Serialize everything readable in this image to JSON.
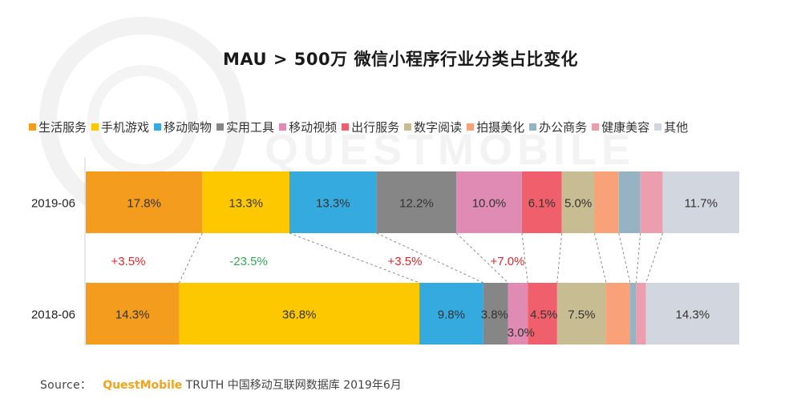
{
  "chart_data": {
    "type": "stacked-bar-horizontal-100",
    "title": "MAU > 500万 微信小程序行业分类占比变化",
    "legend_position": "top",
    "categories": [
      "2019-06",
      "2018-06"
    ],
    "series": [
      {
        "name": "生活服务",
        "color": "#f39c1e",
        "values": [
          17.8,
          14.3
        ],
        "labels": [
          "17.8%",
          "14.3%"
        ]
      },
      {
        "name": "手机游戏",
        "color": "#fdc800",
        "values": [
          13.3,
          36.8
        ],
        "labels": [
          "13.3%",
          "36.8%"
        ]
      },
      {
        "name": "移动购物",
        "color": "#35aadf",
        "values": [
          13.3,
          9.8
        ],
        "labels": [
          "13.3%",
          "9.8%"
        ]
      },
      {
        "name": "实用工具",
        "color": "#868686",
        "values": [
          12.2,
          3.8
        ],
        "labels": [
          "12.2%",
          "3.8%"
        ]
      },
      {
        "name": "移动视频",
        "color": "#e08bb3",
        "values": [
          10.0,
          3.0
        ],
        "labels": [
          "10.0%",
          "3.0%"
        ]
      },
      {
        "name": "出行服务",
        "color": "#f0606c",
        "values": [
          6.1,
          4.5
        ],
        "labels": [
          "6.1%",
          "4.5%"
        ]
      },
      {
        "name": "数字阅读",
        "color": "#c8bc92",
        "values": [
          5.0,
          7.5
        ],
        "labels": [
          "5.0%",
          "7.5%"
        ]
      },
      {
        "name": "拍摄美化",
        "color": "#f9a179",
        "values": [
          3.7,
          3.7
        ],
        "labels": [
          "",
          ""
        ]
      },
      {
        "name": "办公商务",
        "color": "#95b3c3",
        "values": [
          3.3,
          0.9
        ],
        "labels": [
          "",
          ""
        ]
      },
      {
        "name": "健康美容",
        "color": "#ec9eaf",
        "values": [
          3.4,
          1.5
        ],
        "labels": [
          "",
          ""
        ]
      },
      {
        "name": "其他",
        "color": "#d2d6de",
        "values": [
          11.7,
          14.3
        ],
        "labels": [
          "11.7%",
          "14.3%"
        ]
      }
    ],
    "annotations": [
      {
        "text": "+3.5%",
        "color": "#e0262c"
      },
      {
        "text": "-23.5%",
        "color": "#33a853"
      },
      {
        "text": "+3.5%",
        "color": "#e0262c"
      },
      {
        "text": "+7.0%",
        "color": "#e0262c"
      }
    ]
  },
  "source": {
    "prefix": "Source：",
    "brand": "QuestMobile",
    "rest": "TRUTH 中国移动互联网数据库 2019年6月"
  }
}
